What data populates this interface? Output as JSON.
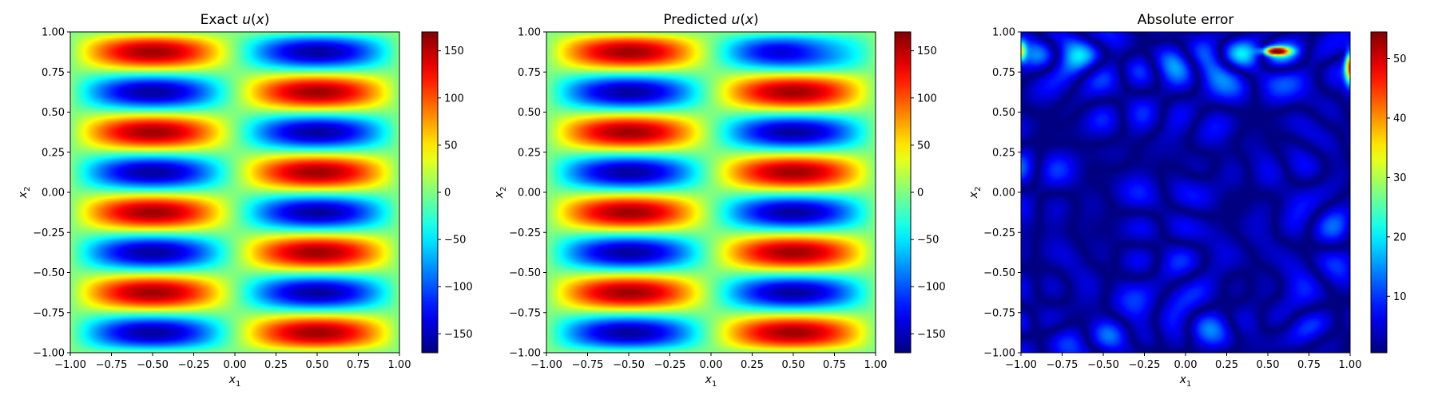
{
  "chart_data": [
    {
      "type": "heatmap",
      "title": "Exact u(x)",
      "title_parts": {
        "prefix": "Exact ",
        "var": "u",
        "arg": "(x)"
      },
      "xlabel": "x1",
      "ylabel": "x2",
      "xlim": [
        -1.0,
        1.0
      ],
      "ylim": [
        -1.0,
        1.0
      ],
      "xticks": [
        "−1.00",
        "−0.75",
        "−0.50",
        "−0.25",
        "0.00",
        "0.25",
        "0.50",
        "0.75",
        "1.00"
      ],
      "yticks": [
        "−1.00",
        "−0.75",
        "−0.50",
        "−0.25",
        "0.00",
        "0.25",
        "0.50",
        "0.75",
        "1.00"
      ],
      "colormap": "jet",
      "field": "u(x1,x2) ≈ 160·sin(π·x1)·sin(4π·x2)",
      "peak_value": 160,
      "colorbar": {
        "min": -170,
        "max": 170,
        "ticks": [
          150,
          100,
          50,
          0,
          -50,
          -100,
          -150
        ],
        "tick_labels": [
          "150",
          "100",
          "50",
          "0",
          "−50",
          "−100",
          "−150"
        ]
      }
    },
    {
      "type": "heatmap",
      "title": "Predicted u(x)",
      "title_parts": {
        "prefix": "Predicted ",
        "var": "u",
        "arg": "(x)"
      },
      "xlabel": "x1",
      "ylabel": "x2",
      "xlim": [
        -1.0,
        1.0
      ],
      "ylim": [
        -1.0,
        1.0
      ],
      "xticks": [
        "−1.00",
        "−0.75",
        "−0.50",
        "−0.25",
        "0.00",
        "0.25",
        "0.50",
        "0.75",
        "1.00"
      ],
      "yticks": [
        "−1.00",
        "−0.75",
        "−0.50",
        "−0.25",
        "0.00",
        "0.25",
        "0.50",
        "0.75",
        "1.00"
      ],
      "colormap": "jet",
      "field": "approximately equal to Exact u(x), with distortion near the top-right corner",
      "peak_value": 160,
      "colorbar": {
        "min": -170,
        "max": 170,
        "ticks": [
          150,
          100,
          50,
          0,
          -50,
          -100,
          -150
        ],
        "tick_labels": [
          "150",
          "100",
          "50",
          "0",
          "−50",
          "−100",
          "−150"
        ]
      }
    },
    {
      "type": "heatmap",
      "title": "Absolute error",
      "title_parts": {
        "prefix": "Absolute error",
        "var": "",
        "arg": ""
      },
      "xlabel": "x1",
      "ylabel": "x2",
      "xlim": [
        -1.0,
        1.0
      ],
      "ylim": [
        -1.0,
        1.0
      ],
      "xticks": [
        "−1.00",
        "−0.75",
        "−0.50",
        "−0.25",
        "0.00",
        "0.25",
        "0.50",
        "0.75",
        "1.00"
      ],
      "yticks": [
        "−1.00",
        "−0.75",
        "−0.50",
        "−0.25",
        "0.00",
        "0.25",
        "0.50",
        "0.75",
        "1.00"
      ],
      "colormap": "jet",
      "field": "mostly low error (≈0–15), hotspot ≈50 near (0.55, 0.88), elevated near right edge top",
      "hotspot": {
        "x1": 0.55,
        "x2": 0.88,
        "value": 52
      },
      "colorbar": {
        "min": 0.5,
        "max": 54.5,
        "ticks": [
          50,
          40,
          30,
          20,
          10
        ],
        "tick_labels": [
          "50",
          "40",
          "30",
          "20",
          "10"
        ]
      }
    }
  ]
}
